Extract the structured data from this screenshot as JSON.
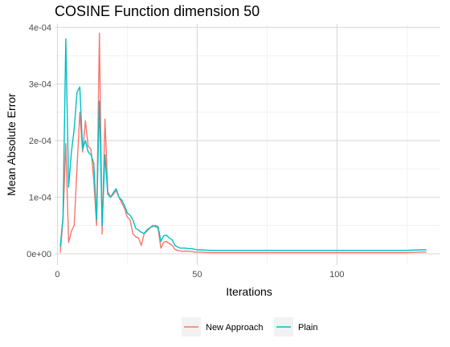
{
  "chart_data": {
    "type": "line",
    "title": "COSINE Function dimension 50",
    "xlabel": "Iterations",
    "ylabel": "Mean Absolute Error",
    "xlim": [
      -1,
      137
    ],
    "ylim": [
      -2e-05,
      0.000406
    ],
    "x_ticks": [
      0,
      50,
      100
    ],
    "x_tick_labels": [
      "0",
      "50",
      "100"
    ],
    "y_ticks": [
      0,
      0.0001,
      0.0002,
      0.0003,
      0.0004
    ],
    "y_tick_labels": [
      "0e+00",
      "1e-04",
      "2e-04",
      "3e-04",
      "4e-04"
    ],
    "grid": true,
    "legend_position": "bottom",
    "x": [
      1,
      2,
      3,
      4,
      5,
      6,
      7,
      8,
      9,
      10,
      11,
      12,
      13,
      14,
      15,
      16,
      17,
      18,
      19,
      20,
      21,
      22,
      23,
      24,
      25,
      26,
      27,
      28,
      29,
      30,
      31,
      32,
      33,
      34,
      35,
      36,
      37,
      38,
      39,
      40,
      41,
      42,
      43,
      44,
      45,
      46,
      47,
      48,
      49,
      50,
      55,
      60,
      65,
      70,
      75,
      80,
      85,
      90,
      95,
      100,
      105,
      110,
      115,
      120,
      125,
      130,
      132
    ],
    "series": [
      {
        "name": "New Approach",
        "color": "#F8766D",
        "values": [
          2e-06,
          6e-05,
          0.000195,
          2e-05,
          4e-05,
          5e-05,
          0.00015,
          0.00025,
          0.00018,
          0.000235,
          0.00019,
          0.000185,
          0.00013,
          5e-05,
          0.00039,
          3.5e-05,
          0.000238,
          0.00011,
          0.0001,
          0.000105,
          0.000112,
          0.0001,
          9e-05,
          8e-05,
          6.5e-05,
          6e-05,
          3.5e-05,
          3e-05,
          2.8e-05,
          1.5e-05,
          3.5e-05,
          4e-05,
          4.5e-05,
          5e-05,
          4.8e-05,
          4.5e-05,
          1e-05,
          2e-05,
          2.2e-05,
          1.8e-05,
          1.5e-05,
          8e-06,
          6e-06,
          5e-06,
          4e-06,
          5e-06,
          4e-06,
          4e-06,
          3e-06,
          3e-06,
          2e-06,
          2e-06,
          2e-06,
          2e-06,
          2e-06,
          2e-06,
          2e-06,
          2e-06,
          2e-06,
          2e-06,
          2e-06,
          2e-06,
          2e-06,
          2e-06,
          2e-06,
          3e-06,
          3e-06
        ]
      },
      {
        "name": "Plain",
        "color": "#00BFC4",
        "values": [
          1.2e-05,
          6.5e-05,
          0.00038,
          0.000118,
          0.00018,
          0.00022,
          0.000285,
          0.000295,
          0.000185,
          0.0002,
          0.00018,
          0.000175,
          0.00016,
          6e-05,
          0.00027,
          5e-05,
          0.000175,
          0.000105,
          0.0001,
          0.000108,
          0.000115,
          0.0001,
          9.5e-05,
          8.5e-05,
          7.2e-05,
          6.8e-05,
          6e-05,
          4.5e-05,
          4.2e-05,
          3.8e-05,
          3.6e-05,
          4.2e-05,
          4.6e-05,
          4.8e-05,
          5e-05,
          4.8e-05,
          2.2e-05,
          3.2e-05,
          3.3e-05,
          2.8e-05,
          2.5e-05,
          1.5e-05,
          1.2e-05,
          1e-05,
          1e-05,
          1e-05,
          9e-06,
          9e-06,
          8e-06,
          7e-06,
          6e-06,
          6e-06,
          6e-06,
          6e-06,
          6e-06,
          6e-06,
          6e-06,
          6e-06,
          6e-06,
          6e-06,
          6e-06,
          6e-06,
          6e-06,
          6e-06,
          6e-06,
          7e-06,
          7e-06
        ]
      }
    ]
  }
}
